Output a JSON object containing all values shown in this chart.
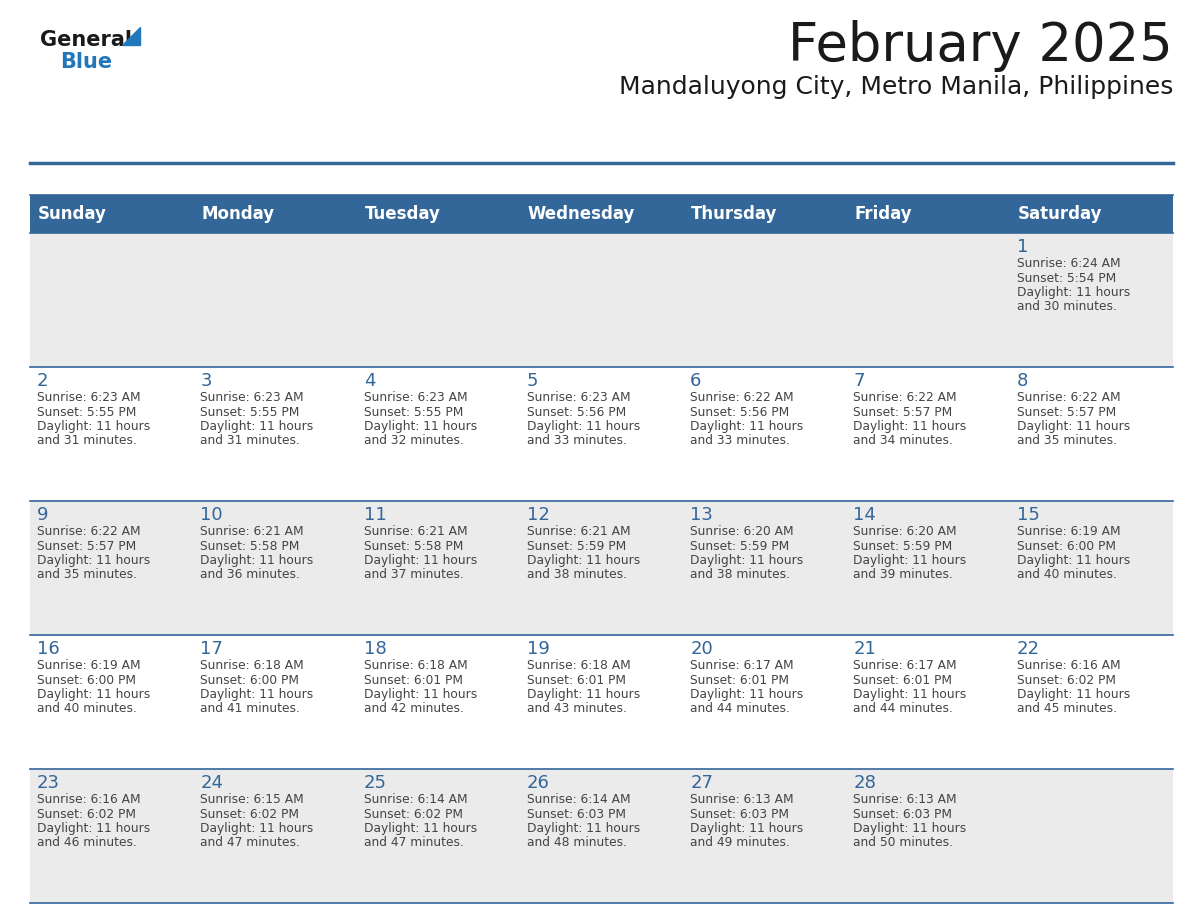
{
  "title": "February 2025",
  "subtitle": "Mandaluyong City, Metro Manila, Philippines",
  "days_of_week": [
    "Sunday",
    "Monday",
    "Tuesday",
    "Wednesday",
    "Thursday",
    "Friday",
    "Saturday"
  ],
  "header_bg": "#336699",
  "header_text": "#FFFFFF",
  "row0_bg": "#EBEBEB",
  "row1_bg": "#FFFFFF",
  "row2_bg": "#EBEBEB",
  "row3_bg": "#FFFFFF",
  "row4_bg": "#EBEBEB",
  "day_number_color": "#336699",
  "text_color": "#444444",
  "border_color": "#336699",
  "background_color": "#FFFFFF",
  "logo_general_color": "#1a1a1a",
  "logo_blue_color": "#2277bb",
  "title_color": "#1a1a1a",
  "subtitle_color": "#1a1a1a",
  "calendar_data": [
    {
      "day": 1,
      "col": 6,
      "row": 0,
      "sunrise": "6:24 AM",
      "sunset": "5:54 PM",
      "daylight_suffix": "30 minutes."
    },
    {
      "day": 2,
      "col": 0,
      "row": 1,
      "sunrise": "6:23 AM",
      "sunset": "5:55 PM",
      "daylight_suffix": "31 minutes."
    },
    {
      "day": 3,
      "col": 1,
      "row": 1,
      "sunrise": "6:23 AM",
      "sunset": "5:55 PM",
      "daylight_suffix": "31 minutes."
    },
    {
      "day": 4,
      "col": 2,
      "row": 1,
      "sunrise": "6:23 AM",
      "sunset": "5:55 PM",
      "daylight_suffix": "32 minutes."
    },
    {
      "day": 5,
      "col": 3,
      "row": 1,
      "sunrise": "6:23 AM",
      "sunset": "5:56 PM",
      "daylight_suffix": "33 minutes."
    },
    {
      "day": 6,
      "col": 4,
      "row": 1,
      "sunrise": "6:22 AM",
      "sunset": "5:56 PM",
      "daylight_suffix": "33 minutes."
    },
    {
      "day": 7,
      "col": 5,
      "row": 1,
      "sunrise": "6:22 AM",
      "sunset": "5:57 PM",
      "daylight_suffix": "34 minutes."
    },
    {
      "day": 8,
      "col": 6,
      "row": 1,
      "sunrise": "6:22 AM",
      "sunset": "5:57 PM",
      "daylight_suffix": "35 minutes."
    },
    {
      "day": 9,
      "col": 0,
      "row": 2,
      "sunrise": "6:22 AM",
      "sunset": "5:57 PM",
      "daylight_suffix": "35 minutes."
    },
    {
      "day": 10,
      "col": 1,
      "row": 2,
      "sunrise": "6:21 AM",
      "sunset": "5:58 PM",
      "daylight_suffix": "36 minutes."
    },
    {
      "day": 11,
      "col": 2,
      "row": 2,
      "sunrise": "6:21 AM",
      "sunset": "5:58 PM",
      "daylight_suffix": "37 minutes."
    },
    {
      "day": 12,
      "col": 3,
      "row": 2,
      "sunrise": "6:21 AM",
      "sunset": "5:59 PM",
      "daylight_suffix": "38 minutes."
    },
    {
      "day": 13,
      "col": 4,
      "row": 2,
      "sunrise": "6:20 AM",
      "sunset": "5:59 PM",
      "daylight_suffix": "38 minutes."
    },
    {
      "day": 14,
      "col": 5,
      "row": 2,
      "sunrise": "6:20 AM",
      "sunset": "5:59 PM",
      "daylight_suffix": "39 minutes."
    },
    {
      "day": 15,
      "col": 6,
      "row": 2,
      "sunrise": "6:19 AM",
      "sunset": "6:00 PM",
      "daylight_suffix": "40 minutes."
    },
    {
      "day": 16,
      "col": 0,
      "row": 3,
      "sunrise": "6:19 AM",
      "sunset": "6:00 PM",
      "daylight_suffix": "40 minutes."
    },
    {
      "day": 17,
      "col": 1,
      "row": 3,
      "sunrise": "6:18 AM",
      "sunset": "6:00 PM",
      "daylight_suffix": "41 minutes."
    },
    {
      "day": 18,
      "col": 2,
      "row": 3,
      "sunrise": "6:18 AM",
      "sunset": "6:01 PM",
      "daylight_suffix": "42 minutes."
    },
    {
      "day": 19,
      "col": 3,
      "row": 3,
      "sunrise": "6:18 AM",
      "sunset": "6:01 PM",
      "daylight_suffix": "43 minutes."
    },
    {
      "day": 20,
      "col": 4,
      "row": 3,
      "sunrise": "6:17 AM",
      "sunset": "6:01 PM",
      "daylight_suffix": "44 minutes."
    },
    {
      "day": 21,
      "col": 5,
      "row": 3,
      "sunrise": "6:17 AM",
      "sunset": "6:01 PM",
      "daylight_suffix": "44 minutes."
    },
    {
      "day": 22,
      "col": 6,
      "row": 3,
      "sunrise": "6:16 AM",
      "sunset": "6:02 PM",
      "daylight_suffix": "45 minutes."
    },
    {
      "day": 23,
      "col": 0,
      "row": 4,
      "sunrise": "6:16 AM",
      "sunset": "6:02 PM",
      "daylight_suffix": "46 minutes."
    },
    {
      "day": 24,
      "col": 1,
      "row": 4,
      "sunrise": "6:15 AM",
      "sunset": "6:02 PM",
      "daylight_suffix": "47 minutes."
    },
    {
      "day": 25,
      "col": 2,
      "row": 4,
      "sunrise": "6:14 AM",
      "sunset": "6:02 PM",
      "daylight_suffix": "47 minutes."
    },
    {
      "day": 26,
      "col": 3,
      "row": 4,
      "sunrise": "6:14 AM",
      "sunset": "6:03 PM",
      "daylight_suffix": "48 minutes."
    },
    {
      "day": 27,
      "col": 4,
      "row": 4,
      "sunrise": "6:13 AM",
      "sunset": "6:03 PM",
      "daylight_suffix": "49 minutes."
    },
    {
      "day": 28,
      "col": 5,
      "row": 4,
      "sunrise": "6:13 AM",
      "sunset": "6:03 PM",
      "daylight_suffix": "50 minutes."
    }
  ]
}
